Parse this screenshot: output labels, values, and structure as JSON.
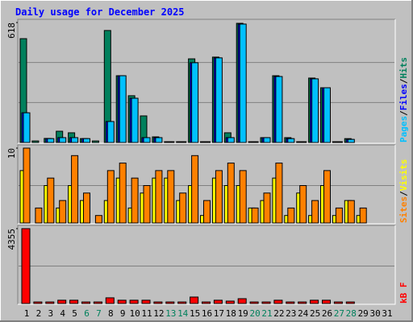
{
  "chart_data": [
    {
      "type": "bar",
      "title": "Daily usage for December 2025",
      "categories": [
        "1",
        "2",
        "3",
        "4",
        "5",
        "6",
        "7",
        "8",
        "9",
        "10",
        "11",
        "12",
        "13",
        "14",
        "15",
        "16",
        "17",
        "18",
        "19",
        "20",
        "21",
        "22",
        "23",
        "24",
        "25",
        "26",
        "27",
        "28",
        "29",
        "30",
        "31"
      ],
      "category_colors": [
        "#000000",
        "#000000",
        "#000000",
        "#000000",
        "#000000",
        "#00805c",
        "#00805c",
        "#000000",
        "#000000",
        "#000000",
        "#000000",
        "#000000",
        "#00805c",
        "#00805c",
        "#000000",
        "#000000",
        "#000000",
        "#000000",
        "#000000",
        "#00805c",
        "#00805c",
        "#000000",
        "#000000",
        "#000000",
        "#000000",
        "#000000",
        "#00805c",
        "#00805c",
        "#000000",
        "#000000",
        "#000000"
      ],
      "ylim": [
        0,
        618
      ],
      "yticks": [
        618
      ],
      "legend_separator": "/",
      "series": [
        {
          "name": "Hits",
          "color": "#00805c",
          "values": [
            535,
            8,
            21,
            58,
            50,
            20,
            8,
            577,
            344,
            241,
            137,
            29,
            4,
            4,
            431,
            4,
            440,
            50,
            614,
            4,
            25,
            344,
            25,
            4,
            332,
            282,
            4,
            20,
            0,
            0,
            0
          ]
        },
        {
          "name": "Files",
          "color": "#0000ff",
          "values": [
            153,
            0,
            20,
            25,
            25,
            20,
            0,
            108,
            344,
            228,
            25,
            25,
            4,
            4,
            411,
            4,
            436,
            25,
            610,
            4,
            25,
            340,
            20,
            4,
            328,
            282,
            4,
            16,
            0,
            0,
            0
          ]
        },
        {
          "name": "Pages",
          "color": "#00c0ff",
          "values": [
            153,
            0,
            20,
            25,
            25,
            20,
            0,
            108,
            344,
            228,
            25,
            25,
            4,
            4,
            411,
            4,
            436,
            25,
            610,
            4,
            25,
            340,
            20,
            4,
            328,
            282,
            4,
            16,
            0,
            0,
            0
          ]
        }
      ]
    },
    {
      "type": "bar",
      "ylim": [
        0,
        10
      ],
      "yticks": [
        10
      ],
      "legend_separator": "/",
      "series": [
        {
          "name": "Visits",
          "color": "#ffff00",
          "values": [
            7,
            0,
            5,
            2,
            5,
            3,
            0,
            3,
            6,
            2,
            4,
            6,
            6,
            3,
            5,
            1,
            6,
            5,
            5,
            2,
            3,
            6,
            1,
            4,
            1,
            5,
            1,
            3,
            1,
            0,
            0
          ]
        },
        {
          "name": "Sites",
          "color": "#ff8000",
          "values": [
            10,
            2,
            6,
            3,
            9,
            4,
            1,
            7,
            8,
            6,
            5,
            7,
            7,
            4,
            9,
            3,
            7,
            8,
            7,
            2,
            4,
            8,
            2,
            5,
            3,
            7,
            2,
            3,
            2,
            0,
            0
          ]
        }
      ]
    },
    {
      "type": "bar",
      "ylim": [
        0,
        4355
      ],
      "yticks": [
        4355
      ],
      "series": [
        {
          "name": "kB F",
          "color": "#ff0000",
          "values": [
            4355,
            90,
            90,
            190,
            190,
            90,
            90,
            330,
            190,
            190,
            190,
            90,
            90,
            90,
            375,
            90,
            190,
            140,
            280,
            90,
            90,
            190,
            90,
            90,
            190,
            190,
            90,
            90,
            0,
            0,
            0
          ]
        }
      ]
    }
  ]
}
